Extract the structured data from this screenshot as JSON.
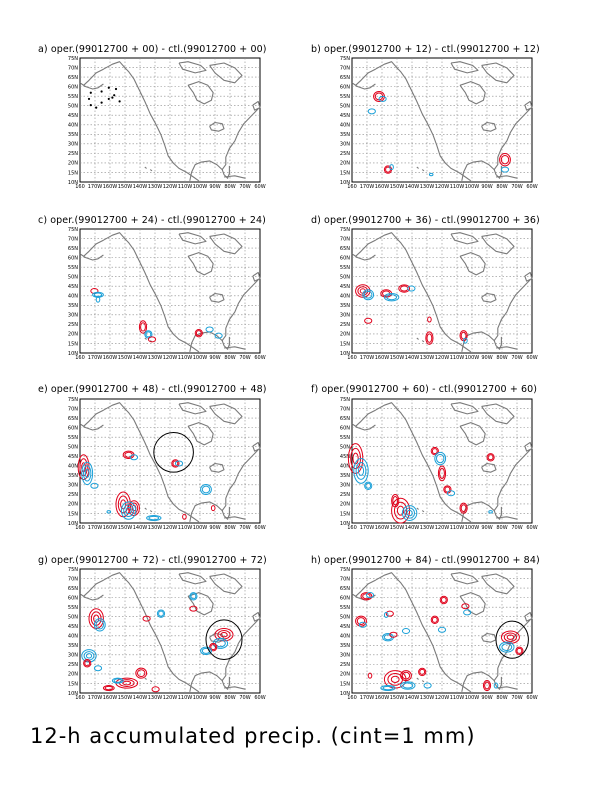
{
  "panels": [
    {
      "title": "a) oper.(99012700 + 00) - ctl.(99012700 + 00)"
    },
    {
      "title": "b) oper.(99012700 + 12) - ctl.(99012700 + 12)"
    },
    {
      "title": "c) oper.(99012700 + 24) - ctl.(99012700 + 24)"
    },
    {
      "title": "d) oper.(99012700 + 36) - ctl.(99012700 + 36)"
    },
    {
      "title": "e) oper.(99012700 + 48) - ctl.(99012700 + 48)"
    },
    {
      "title": "f) oper.(99012700 + 60) - ctl.(99012700 + 60)"
    },
    {
      "title": "g) oper.(99012700 + 72) - ctl.(99012700 + 72)"
    },
    {
      "title": "h) oper.(99012700 + 84) - ctl.(99012700 + 84)"
    }
  ],
  "axes": {
    "lat_labels": [
      "10N",
      "15N",
      "20N",
      "25N",
      "30N",
      "35N",
      "40N",
      "45N",
      "50N",
      "55N",
      "60N",
      "65N",
      "70N",
      "75N"
    ],
    "lon_labels": [
      "160",
      "170W",
      "160W",
      "150W",
      "140W",
      "130W",
      "120W",
      "110W",
      "100W",
      "90W",
      "80W",
      "70W",
      "60W"
    ]
  },
  "caption": "12-h accumulated precip. (cint=1 mm)",
  "colors": {
    "positive": "#e0001a",
    "negative": "#1aa0d8",
    "coastline": "#7a7a7a"
  }
}
